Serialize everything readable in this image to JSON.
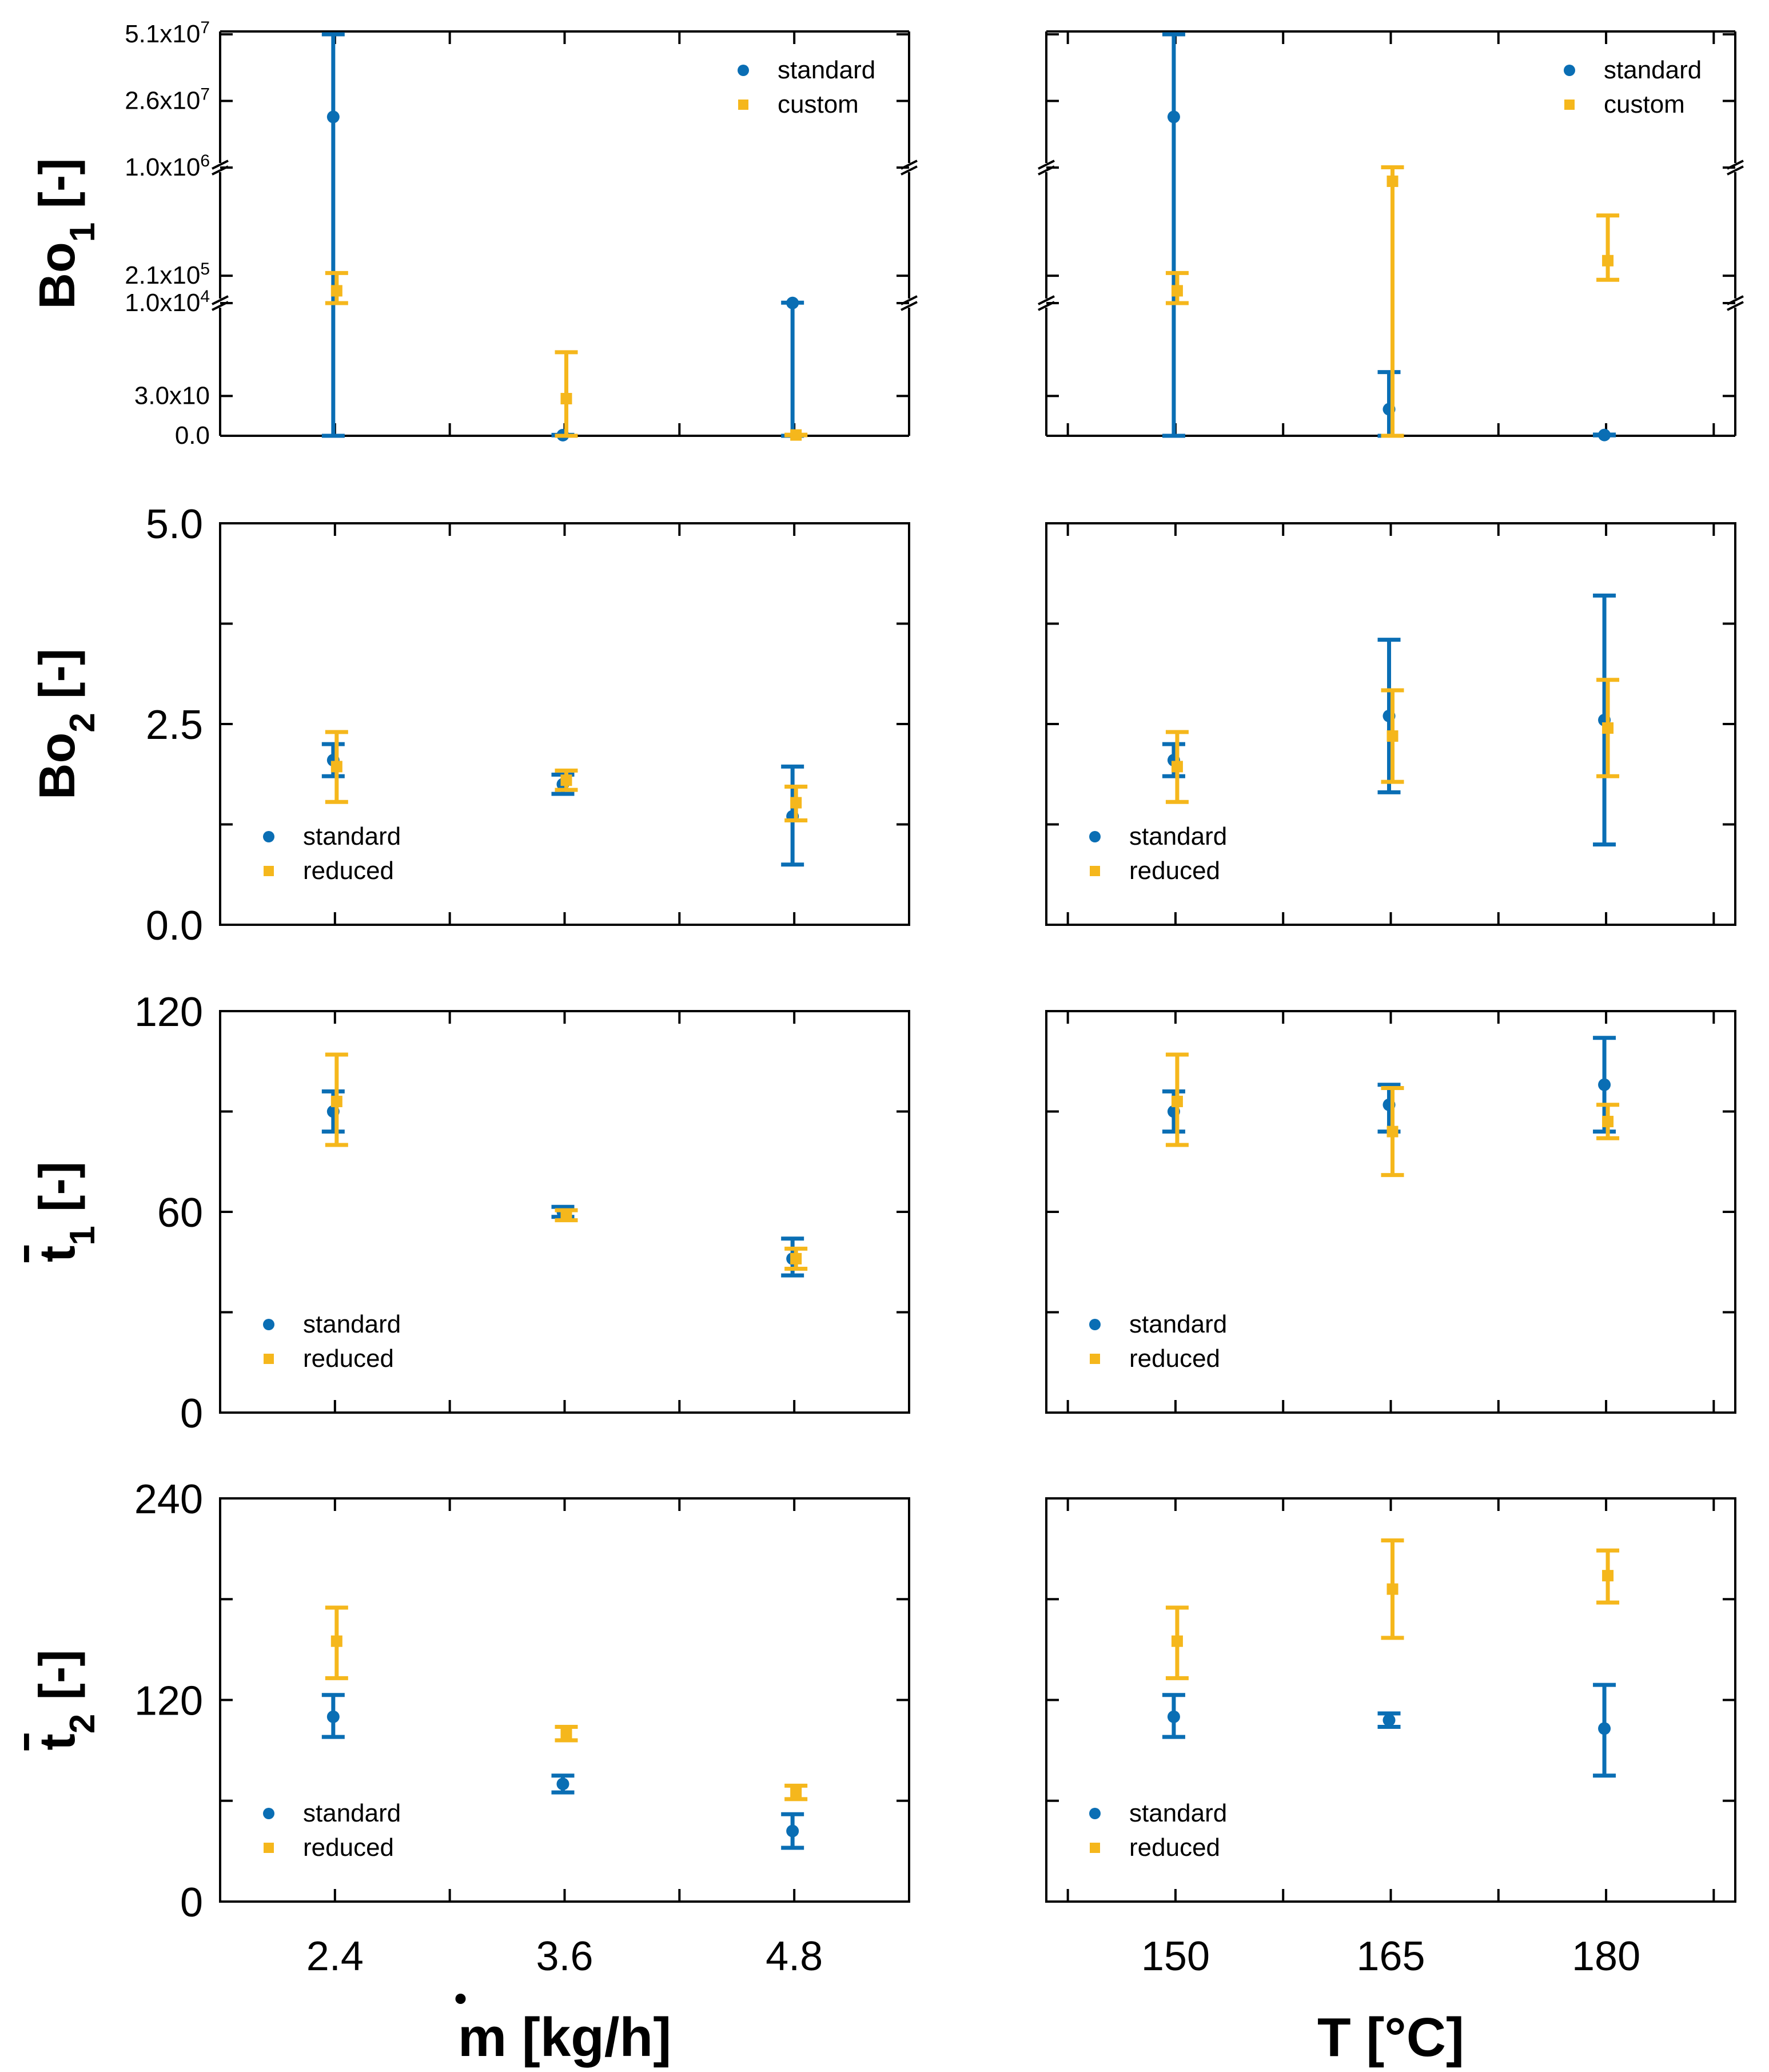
{
  "colors": {
    "standard": "#0a6eb4",
    "custom": "#f5b71c",
    "reduced": "#f5b71c",
    "axis": "#000000"
  },
  "chart_data": [
    {
      "id": "bo1-mdot",
      "type": "scatter",
      "ylabel": "Bo",
      "ylabel_sub": "1",
      "ylabel_unit": " [-]",
      "broken_axis": true,
      "x": [
        2.4,
        3.6,
        4.8
      ],
      "xlim": [
        1.8,
        5.4
      ],
      "yticks": [
        "5.1x10",
        "2.6x10",
        "1.0x10",
        "2.1x10",
        "1.0x10",
        "3.0x10",
        "0.0"
      ],
      "ytick_exp": [
        "7",
        "7",
        "6",
        "5",
        "4",
        "",
        ""
      ],
      "legend": [
        {
          "key": "standard",
          "label": "standard"
        },
        {
          "key": "custom",
          "label": "custom"
        }
      ],
      "legend_position": "top-right",
      "series": [
        {
          "name": "standard",
          "values": [
            20000000.0,
            50,
            11000.0
          ],
          "err_low": [
            0,
            30,
            0
          ],
          "err_high": [
            51000000.0,
            70,
            13000.0
          ]
        },
        {
          "name": "custom",
          "values": [
            100000.0,
            2800.0,
            60
          ],
          "err_low": [
            10000.0,
            0,
            40
          ],
          "err_high": [
            230000.0,
            6300.0,
            80
          ]
        }
      ]
    },
    {
      "id": "bo1-temp",
      "type": "scatter",
      "broken_axis": true,
      "x": [
        150,
        165,
        180
      ],
      "xlim": [
        141,
        189
      ],
      "legend": [
        {
          "key": "standard",
          "label": "standard"
        },
        {
          "key": "custom",
          "label": "custom"
        }
      ],
      "legend_position": "top-right",
      "series": [
        {
          "name": "standard",
          "values": [
            20000000.0,
            2000.0,
            60
          ],
          "err_low": [
            0,
            0,
            30
          ],
          "err_high": [
            51000000.0,
            4800.0,
            90
          ]
        },
        {
          "name": "custom",
          "values": [
            100000.0,
            900000.0,
            320000.0
          ],
          "err_low": [
            10000.0,
            0,
            180000.0
          ],
          "err_high": [
            230000.0,
            1100000.0,
            650000.0
          ]
        }
      ]
    },
    {
      "id": "bo2-mdot",
      "type": "scatter",
      "ylabel": "Bo",
      "ylabel_sub": "2",
      "ylabel_unit": " [-]",
      "x": [
        2.4,
        3.6,
        4.8
      ],
      "xlim": [
        1.8,
        5.4
      ],
      "ylim": [
        0,
        5
      ],
      "yticks": [
        "0.0",
        "2.5",
        "5.0"
      ],
      "legend": [
        {
          "key": "standard",
          "label": "standard"
        },
        {
          "key": "reduced",
          "label": "reduced"
        }
      ],
      "legend_position": "bottom-left",
      "series": [
        {
          "name": "standard",
          "values": [
            2.05,
            1.75,
            1.35
          ],
          "err_low": [
            1.85,
            1.63,
            0.75
          ],
          "err_high": [
            2.25,
            1.87,
            1.97
          ]
        },
        {
          "name": "reduced",
          "values": [
            1.97,
            1.8,
            1.52
          ],
          "err_low": [
            1.53,
            1.68,
            1.3
          ],
          "err_high": [
            2.4,
            1.92,
            1.72
          ]
        }
      ]
    },
    {
      "id": "bo2-temp",
      "type": "scatter",
      "x": [
        150,
        165,
        180
      ],
      "xlim": [
        141,
        189
      ],
      "ylim": [
        0,
        5
      ],
      "legend": [
        {
          "key": "standard",
          "label": "standard"
        },
        {
          "key": "reduced",
          "label": "reduced"
        }
      ],
      "legend_position": "bottom-left",
      "series": [
        {
          "name": "standard",
          "values": [
            2.05,
            2.6,
            2.55
          ],
          "err_low": [
            1.85,
            1.65,
            1.0
          ],
          "err_high": [
            2.25,
            3.55,
            4.1
          ]
        },
        {
          "name": "reduced",
          "values": [
            1.97,
            2.35,
            2.45
          ],
          "err_low": [
            1.53,
            1.78,
            1.85
          ],
          "err_high": [
            2.4,
            2.92,
            3.05
          ]
        }
      ]
    },
    {
      "id": "t1-mdot",
      "type": "scatter",
      "ylabel": "t",
      "ylabel_sub": "1",
      "ylabel_unit": " [-]",
      "ylabel_bar": true,
      "x": [
        2.4,
        3.6,
        4.8
      ],
      "xlim": [
        1.8,
        5.4
      ],
      "ylim": [
        0,
        120
      ],
      "yticks": [
        "0",
        "60",
        "120"
      ],
      "legend": [
        {
          "key": "standard",
          "label": "standard"
        },
        {
          "key": "reduced",
          "label": "reduced"
        }
      ],
      "legend_position": "bottom-left",
      "series": [
        {
          "name": "standard",
          "values": [
            90,
            60,
            46
          ],
          "err_low": [
            84,
            58.5,
            41
          ],
          "err_high": [
            96,
            61.5,
            52
          ]
        },
        {
          "name": "reduced",
          "values": [
            93,
            59,
            46
          ],
          "err_low": [
            80,
            57.5,
            43
          ],
          "err_high": [
            107,
            60.5,
            49
          ]
        }
      ]
    },
    {
      "id": "t1-temp",
      "type": "scatter",
      "x": [
        150,
        165,
        180
      ],
      "xlim": [
        141,
        189
      ],
      "ylim": [
        0,
        120
      ],
      "legend": [
        {
          "key": "standard",
          "label": "standard"
        },
        {
          "key": "reduced",
          "label": "reduced"
        }
      ],
      "legend_position": "bottom-left",
      "series": [
        {
          "name": "standard",
          "values": [
            90,
            92,
            98
          ],
          "err_low": [
            84,
            84,
            84
          ],
          "err_high": [
            96,
            98,
            112
          ]
        },
        {
          "name": "reduced",
          "values": [
            93,
            84,
            87
          ],
          "err_low": [
            80,
            71,
            82
          ],
          "err_high": [
            107,
            97,
            92
          ]
        }
      ]
    },
    {
      "id": "t2-mdot",
      "type": "scatter",
      "ylabel": "t",
      "ylabel_sub": "2",
      "ylabel_unit": " [-]",
      "ylabel_bar": true,
      "xlabel": "m [kg/h]",
      "xlabel_dot": true,
      "x": [
        2.4,
        3.6,
        4.8
      ],
      "xlim": [
        1.8,
        5.4
      ],
      "ylim": [
        0,
        240
      ],
      "yticks": [
        "0",
        "120",
        "240"
      ],
      "xticks": [
        "2.4",
        "3.6",
        "4.8"
      ],
      "legend": [
        {
          "key": "standard",
          "label": "standard"
        },
        {
          "key": "reduced",
          "label": "reduced"
        }
      ],
      "legend_position": "bottom-left",
      "series": [
        {
          "name": "standard",
          "values": [
            110,
            70,
            42
          ],
          "err_low": [
            98,
            65,
            32
          ],
          "err_high": [
            123,
            75,
            52
          ]
        },
        {
          "name": "reduced",
          "values": [
            155,
            100,
            65
          ],
          "err_low": [
            133,
            96,
            61
          ],
          "err_high": [
            175,
            104,
            69
          ]
        }
      ]
    },
    {
      "id": "t2-temp",
      "type": "scatter",
      "xlabel": "T [°C]",
      "x": [
        150,
        165,
        180
      ],
      "xlim": [
        141,
        189
      ],
      "ylim": [
        0,
        240
      ],
      "xticks": [
        "150",
        "165",
        "180"
      ],
      "legend": [
        {
          "key": "standard",
          "label": "standard"
        },
        {
          "key": "reduced",
          "label": "reduced"
        }
      ],
      "legend_position": "bottom-left",
      "series": [
        {
          "name": "standard",
          "values": [
            110,
            108,
            103
          ],
          "err_low": [
            98,
            104,
            75
          ],
          "err_high": [
            123,
            112,
            129
          ]
        },
        {
          "name": "reduced",
          "values": [
            155,
            186,
            194
          ],
          "err_low": [
            133,
            157,
            178
          ],
          "err_high": [
            175,
            215,
            209
          ]
        }
      ]
    }
  ]
}
